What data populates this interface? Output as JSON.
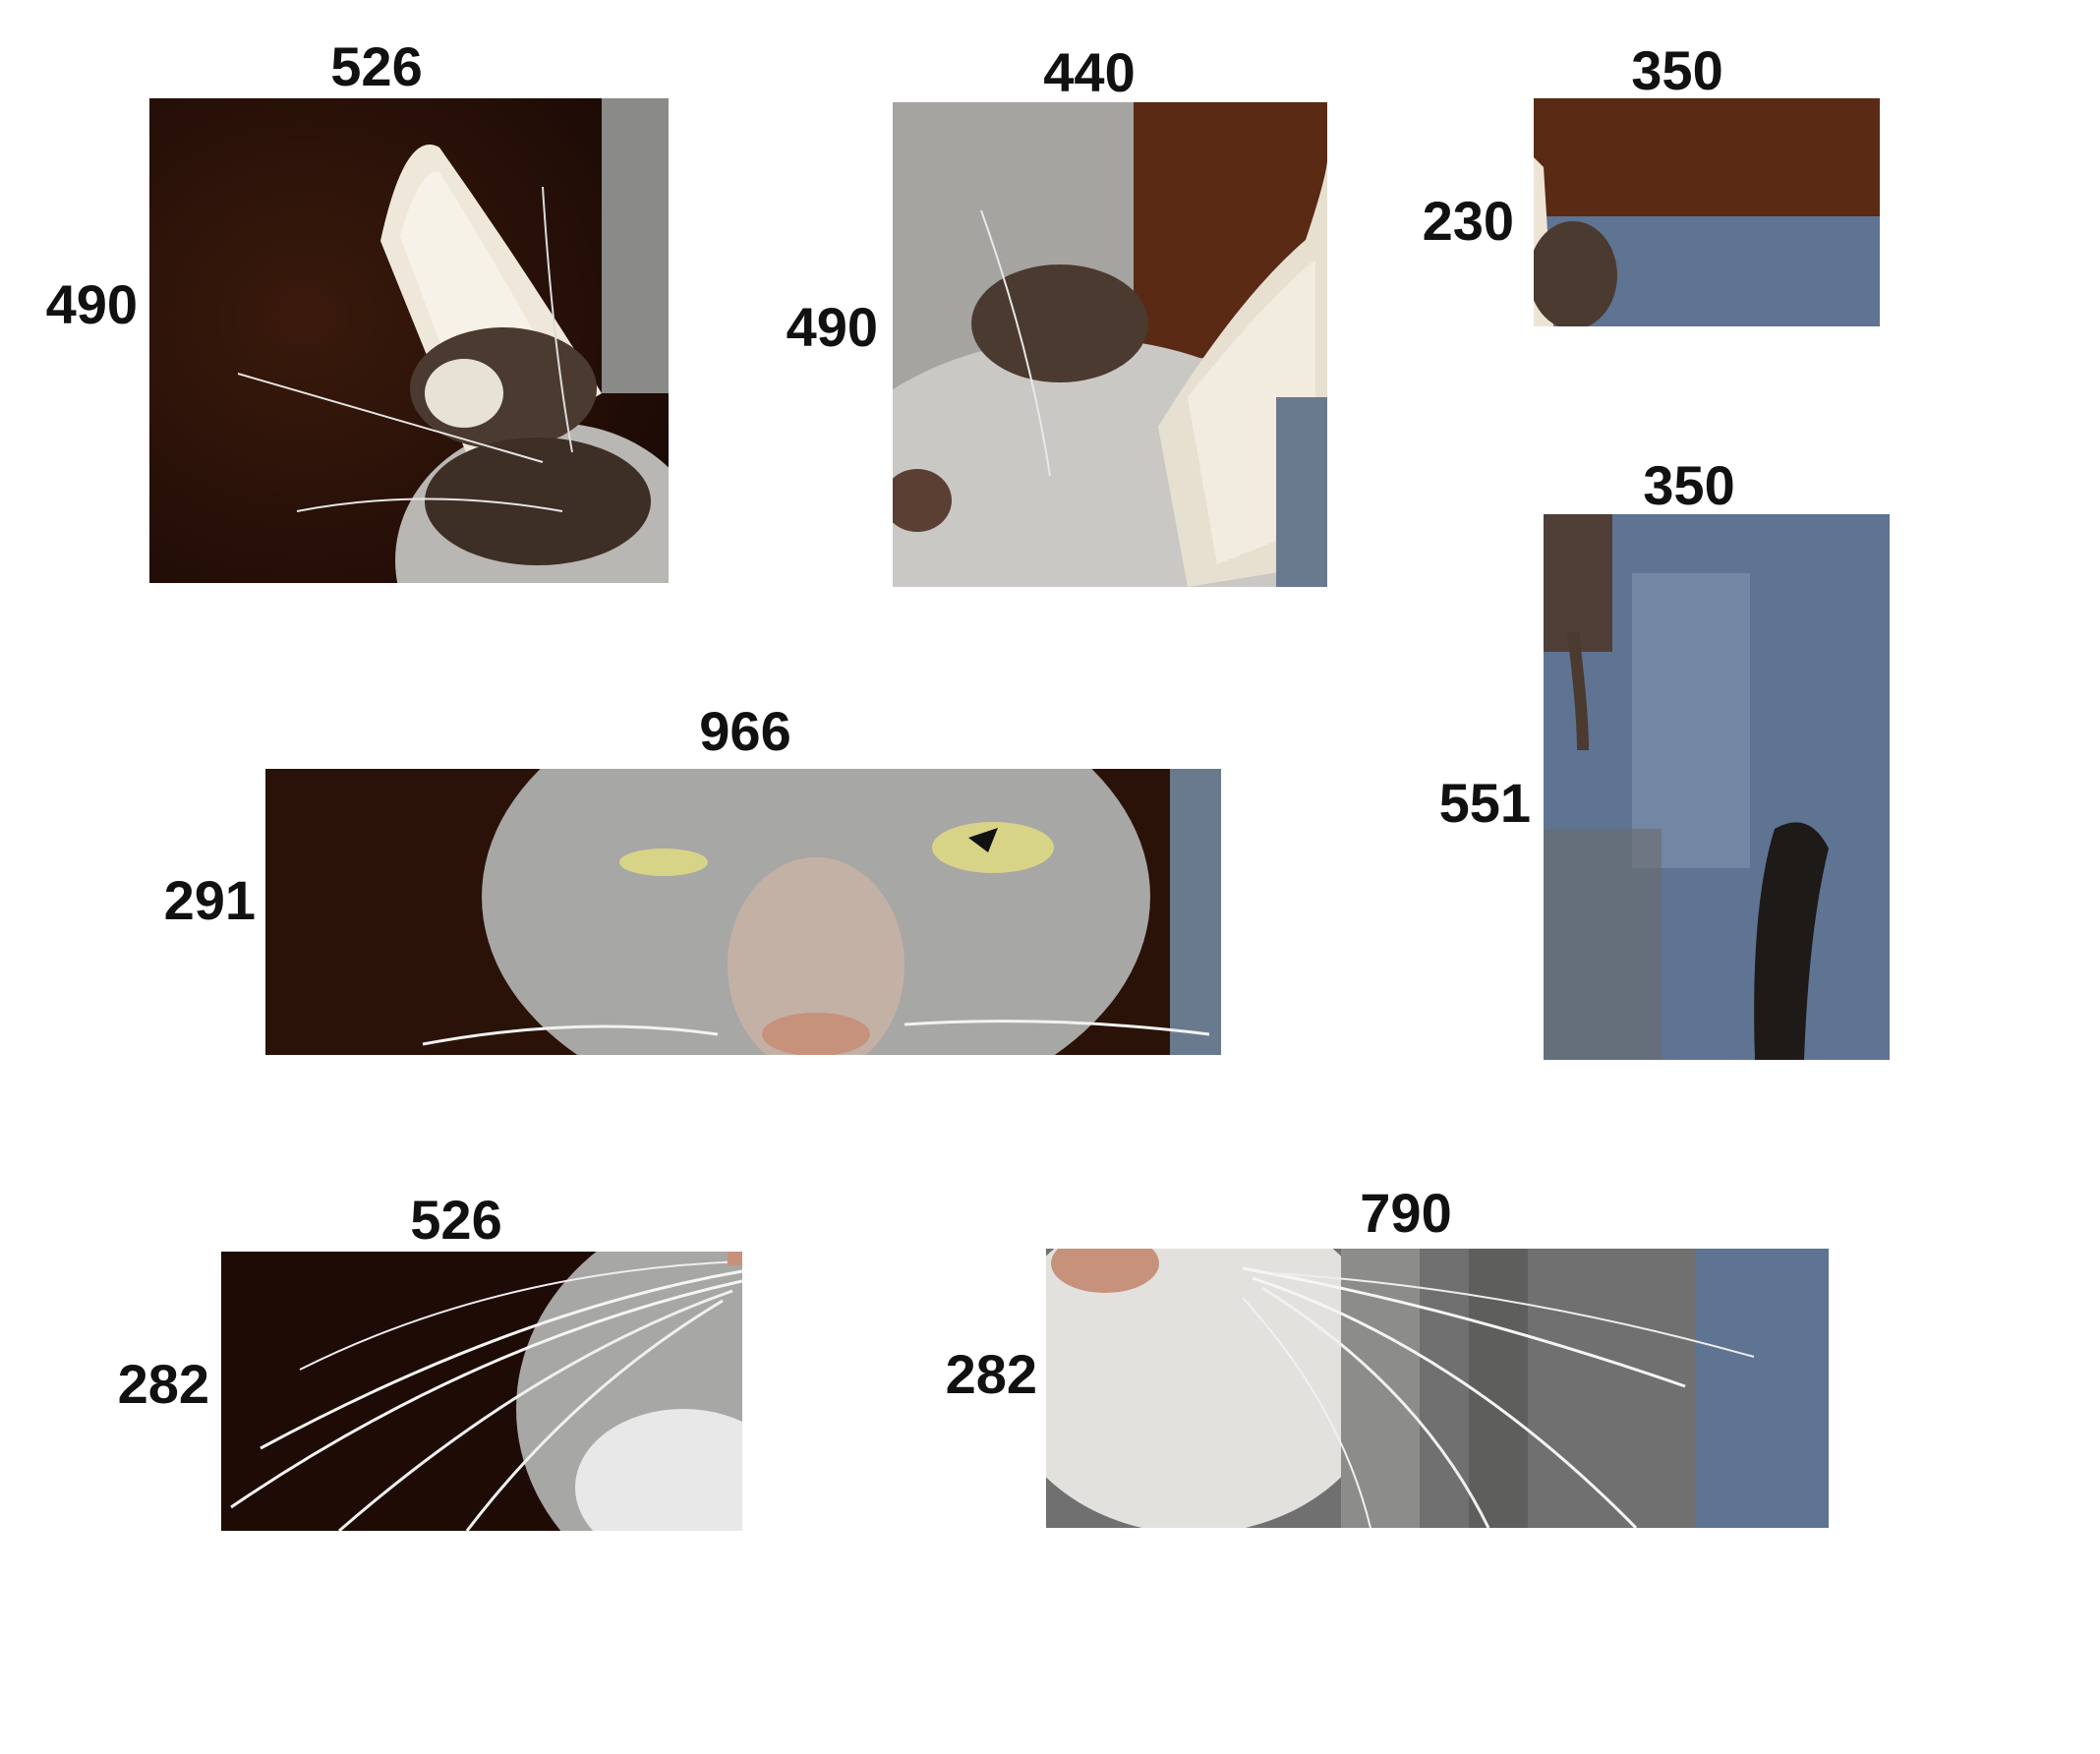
{
  "pieces": [
    {
      "width": "526",
      "height": "490",
      "subject": "cat ear with mouse"
    },
    {
      "width": "440",
      "height": "490",
      "subject": "cat head with mouse and ear"
    },
    {
      "width": "350",
      "height": "230",
      "subject": "ear tip with mouse head"
    },
    {
      "width": "350",
      "height": "551",
      "subject": "mouse tail over blue fabric"
    },
    {
      "width": "966",
      "height": "291",
      "subject": "cat eyes and nose"
    },
    {
      "width": "526",
      "height": "282",
      "subject": "cat whiskers left"
    },
    {
      "width": "790",
      "height": "282",
      "subject": "cat chin and whiskers right"
    }
  ],
  "colors": {
    "dark_brown": "#2a1208",
    "cat_gray": "#a7a7a5",
    "ear_cream": "#ece5d6",
    "mouse_brown": "#4b3a30",
    "blue_fabric": "#5f7393",
    "nose_pink": "#c7927b",
    "eye_yellow": "#d8d487"
  }
}
